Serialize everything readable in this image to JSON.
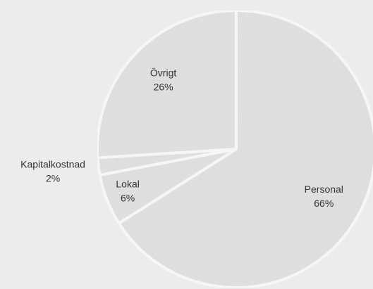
{
  "chart_data": {
    "type": "pie",
    "categories": [
      "Personal",
      "Lokal",
      "Kapitalkostnad",
      "Övrigt"
    ],
    "values": [
      66,
      6,
      2,
      26
    ],
    "value_labels": [
      "66%",
      "6%",
      "2%",
      "26%"
    ],
    "color": "#e4e4e4"
  }
}
